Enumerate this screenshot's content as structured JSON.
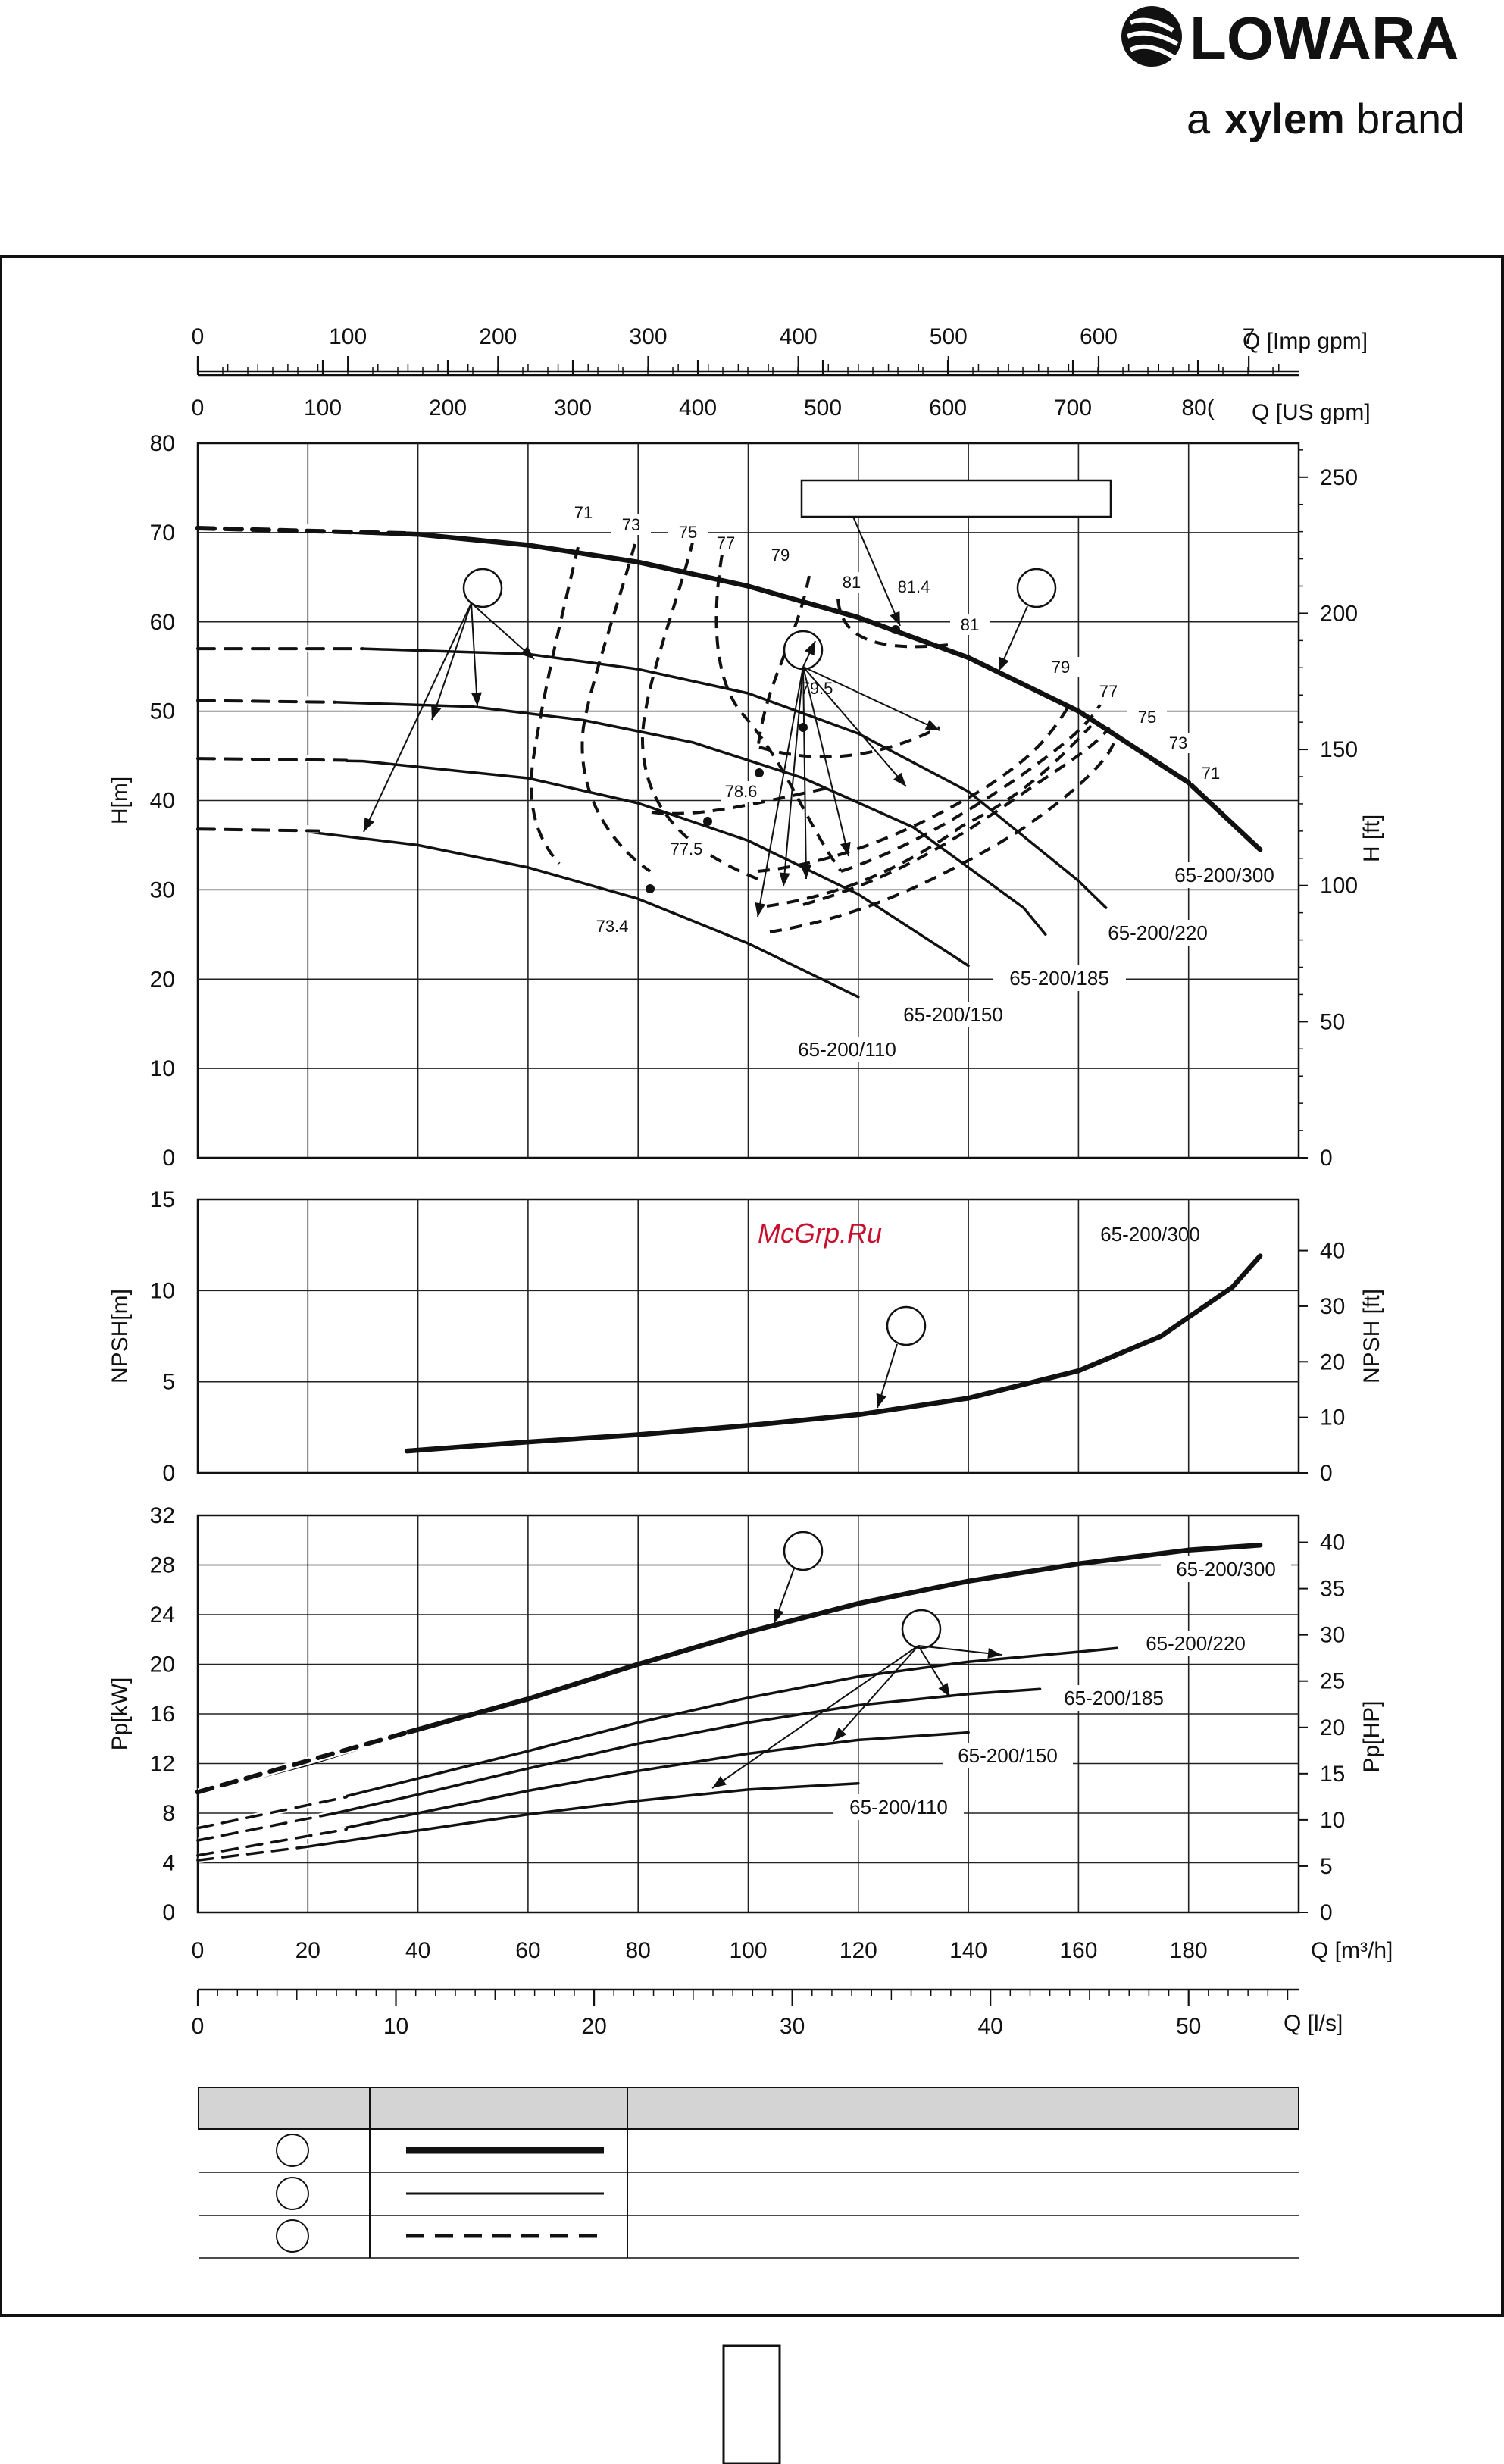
{
  "brand": {
    "name": "LOWARA",
    "tagline_prefix": "a",
    "tagline_brand": "xylem",
    "tagline_suffix": "brand"
  },
  "watermark": "McGrp.Ru",
  "colors": {
    "ink": "#111111",
    "grid": "#222222",
    "watermark": "#c8102e"
  },
  "chart_data": {
    "type": "line",
    "axes": {
      "q_m3h": {
        "label": "Q [m³/h]",
        "range": [
          0,
          200
        ],
        "ticks": [
          0,
          20,
          40,
          60,
          80,
          100,
          120,
          140,
          160,
          180
        ]
      },
      "q_ls": {
        "label": "Q [l/s]",
        "range": [
          0,
          55.6
        ],
        "ticks": [
          0,
          10,
          20,
          30,
          40,
          50
        ]
      },
      "q_usgpm": {
        "label": "Q [US gpm]",
        "ticks": [
          "0",
          "100",
          "200",
          "300",
          "400",
          "500",
          "600",
          "700",
          "80("
        ]
      },
      "q_impgpm": {
        "label": "Q [Imp gpm]",
        "ticks": [
          "0",
          "100",
          "200",
          "300",
          "400",
          "500",
          "600",
          "7"
        ]
      },
      "h_m": {
        "label": "H[m]",
        "range": [
          0,
          80
        ],
        "ticks": [
          0,
          10,
          20,
          30,
          40,
          50,
          60,
          70,
          80
        ]
      },
      "h_ft": {
        "label": "H [ft]",
        "ticks": [
          0,
          50,
          100,
          150,
          200,
          250
        ]
      },
      "npsh_m": {
        "label": "NPSH[m]",
        "range": [
          0,
          15
        ],
        "ticks": [
          0,
          5,
          10,
          15
        ]
      },
      "npsh_ft": {
        "label": "NPSH [ft]",
        "ticks": [
          0,
          10,
          20,
          30,
          40
        ]
      },
      "p_kw": {
        "label": "Pp[kW]",
        "range": [
          0,
          32
        ],
        "ticks": [
          0,
          4,
          8,
          12,
          16,
          20,
          24,
          28,
          32
        ]
      },
      "p_hp": {
        "label": "Pp[HP]",
        "ticks": [
          0,
          5,
          10,
          15,
          20,
          25,
          30,
          35,
          40
        ]
      }
    },
    "head_curves": [
      {
        "name": "65-200/300",
        "style": "thick",
        "x": [
          0,
          20,
          40,
          60,
          80,
          100,
          120,
          140,
          160,
          180,
          193
        ],
        "y": [
          70.5,
          70.3,
          69.8,
          68.6,
          66.7,
          64,
          60.5,
          56,
          50,
          42,
          34.5
        ]
      },
      {
        "name": "65-200/220",
        "style": "thin",
        "x": [
          0,
          30,
          60,
          80,
          100,
          120,
          140,
          160,
          165
        ],
        "y": [
          57,
          57,
          56.4,
          54.7,
          52,
          47.5,
          41,
          31,
          28
        ]
      },
      {
        "name": "65-200/185",
        "style": "thin",
        "x": [
          0,
          25,
          50,
          70,
          90,
          110,
          130,
          150,
          154
        ],
        "y": [
          51.2,
          51,
          50.5,
          49,
          46.5,
          42.5,
          37,
          28,
          25
        ]
      },
      {
        "name": "65-200/150",
        "style": "thin",
        "x": [
          0,
          30,
          60,
          80,
          100,
          120,
          140
        ],
        "y": [
          44.7,
          44.4,
          42.5,
          39.7,
          35.5,
          29.5,
          21.5
        ]
      },
      {
        "name": "65-200/110",
        "style": "thin",
        "x": [
          0,
          20,
          40,
          60,
          80,
          100,
          120
        ],
        "y": [
          36.8,
          36.5,
          35,
          32.5,
          29,
          24,
          18
        ]
      }
    ],
    "efficiency_labels": [
      "71",
      "73",
      "75",
      "77",
      "79",
      "81",
      "81.4",
      "81",
      "79",
      "77",
      "75",
      "73",
      "71",
      "79.5",
      "78.6",
      "77.5",
      "73.4"
    ],
    "npsh_curve": {
      "name": "65-200/300",
      "x": [
        38,
        60,
        80,
        100,
        120,
        140,
        160,
        175,
        188,
        193
      ],
      "y": [
        1.2,
        1.7,
        2.1,
        2.6,
        3.2,
        4.1,
        5.6,
        7.5,
        10.2,
        11.9
      ]
    },
    "power_curves": [
      {
        "name": "65-200/300",
        "x": [
          0,
          20,
          38,
          60,
          80,
          100,
          120,
          140,
          160,
          180,
          193
        ],
        "y": [
          9.7,
          12,
          14.5,
          17.2,
          20,
          22.6,
          24.9,
          26.7,
          28.1,
          29.2,
          29.6
        ]
      },
      {
        "name": "65-200/220",
        "x": [
          0,
          20,
          40,
          60,
          80,
          100,
          120,
          140,
          160,
          167
        ],
        "y": [
          6.8,
          8.6,
          10.8,
          13,
          15.3,
          17.3,
          19,
          20.2,
          21,
          21.3
        ]
      },
      {
        "name": "65-200/185",
        "x": [
          0,
          20,
          40,
          60,
          80,
          100,
          120,
          140,
          153
        ],
        "y": [
          5.8,
          7.5,
          9.5,
          11.6,
          13.6,
          15.3,
          16.7,
          17.6,
          18
        ]
      },
      {
        "name": "65-200/150",
        "x": [
          0,
          20,
          40,
          60,
          80,
          100,
          120,
          140
        ],
        "y": [
          4.6,
          6.2,
          8,
          9.8,
          11.4,
          12.8,
          13.9,
          14.5
        ]
      },
      {
        "name": "65-200/110",
        "x": [
          0,
          20,
          40,
          60,
          80,
          100,
          120
        ],
        "y": [
          4.2,
          5.3,
          6.6,
          7.9,
          9,
          9.9,
          10.4
        ]
      }
    ],
    "legend_table": {
      "header": [
        "",
        "",
        ""
      ],
      "rows": [
        {
          "symbol": "",
          "line": "thick"
        },
        {
          "symbol": "",
          "line": "thin"
        },
        {
          "symbol": "",
          "line": "dashed"
        }
      ]
    },
    "page_number": ""
  }
}
